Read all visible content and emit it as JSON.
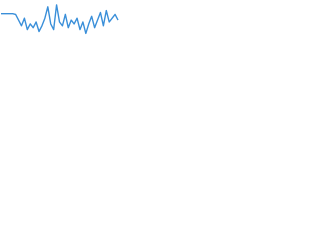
{
  "chart_data": {
    "type": "line",
    "x": [
      0,
      1,
      2,
      3,
      4,
      5,
      6,
      7,
      8,
      9,
      10,
      11,
      12,
      13,
      14,
      15,
      16,
      17,
      18,
      19,
      20,
      21,
      22,
      23,
      24,
      25,
      26,
      27,
      28,
      29,
      30,
      31,
      32,
      33,
      34,
      35,
      36,
      37,
      38,
      39,
      40
    ],
    "values": [
      72,
      72,
      72,
      72,
      72,
      70,
      55,
      40,
      60,
      30,
      45,
      35,
      50,
      25,
      40,
      60,
      90,
      45,
      30,
      95,
      50,
      40,
      70,
      35,
      55,
      45,
      60,
      30,
      50,
      20,
      45,
      65,
      35,
      55,
      75,
      40,
      80,
      50,
      60,
      70,
      55
    ],
    "xlim": [
      0,
      40
    ],
    "ylim": [
      0,
      100
    ],
    "color": "#3a8fd9"
  }
}
